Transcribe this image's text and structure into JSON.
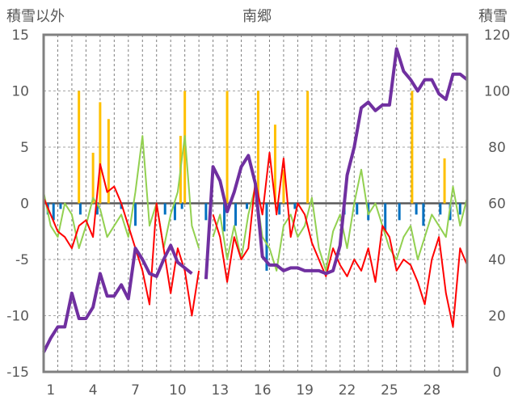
{
  "chart_data": {
    "type": "line",
    "title": "南郷",
    "ylabel_left": "積雪以外",
    "ylabel_right": "積雪",
    "x_ticks": [
      "1",
      "4",
      "7",
      "10",
      "13",
      "16",
      "19",
      "22",
      "25",
      "28"
    ],
    "x_tick_days": [
      1,
      4,
      7,
      10,
      13,
      16,
      19,
      22,
      25,
      28
    ],
    "xlim": [
      0,
      30
    ],
    "ylim_left": [
      -15,
      15
    ],
    "ylim_right": [
      0,
      120
    ],
    "y_ticks_left": [
      "15",
      "10",
      "5",
      "0",
      "-5",
      "-10",
      "-15"
    ],
    "y_ticks_right": [
      "120",
      "100",
      "80",
      "60",
      "40",
      "20",
      "0"
    ],
    "grid": "horizontal dashed every 5 (left axis); vertical dashed at day boundaries",
    "colors": {
      "snow_depth": "#7030a0",
      "temperature": "#ff0000",
      "temperature_2": "#92d050",
      "snowfall": "#ffc000",
      "precip_bar": "#0070c0",
      "zero_line": "#595959",
      "frame": "#808080"
    },
    "series": [
      {
        "key": "snow_depth",
        "axis": "right",
        "x": [
          0,
          0.5,
          1,
          1.5,
          2,
          2.5,
          3,
          3.5,
          4,
          4.5,
          5,
          5.5,
          6,
          6.5,
          7,
          7.5,
          8,
          8.5,
          9,
          9.5,
          10,
          10.5,
          11,
          11.5,
          12,
          12.5,
          13,
          13.5,
          14,
          14.5,
          15,
          15.5,
          16,
          16.5,
          17,
          17.5,
          18,
          18.5,
          19,
          19.5,
          20,
          20.5,
          21,
          21.5,
          22,
          22.5,
          23,
          23.5,
          24,
          24.5,
          25,
          25.5,
          26,
          26.5,
          27,
          27.5,
          28,
          28.5,
          29,
          29.5,
          30
        ],
        "y": [
          7,
          12,
          16,
          16,
          28,
          19,
          19,
          23,
          35,
          27,
          27,
          31,
          26,
          44,
          40,
          35,
          34,
          40,
          45,
          39,
          37,
          35,
          null,
          33,
          73,
          68,
          57,
          64,
          73,
          77,
          67,
          41,
          38,
          38,
          36,
          37,
          37,
          36,
          36,
          36,
          35,
          36,
          45,
          70,
          80,
          94,
          96,
          93,
          95,
          95,
          115,
          107,
          104,
          100,
          104,
          104,
          99,
          97,
          106,
          106,
          104
        ]
      },
      {
        "key": "temperature",
        "axis": "left",
        "x": [
          0,
          0.5,
          1,
          1.5,
          2,
          2.5,
          3,
          3.5,
          4,
          4.5,
          5,
          5.5,
          6,
          6.5,
          7,
          7.5,
          8,
          8.5,
          9,
          9.5,
          10,
          10.5,
          11,
          11.5,
          12,
          12.5,
          13,
          13.5,
          14,
          14.5,
          15,
          15.5,
          16,
          16.5,
          17,
          17.5,
          18,
          18.5,
          19,
          19.5,
          20,
          20.5,
          21,
          21.5,
          22,
          22.5,
          23,
          23.5,
          24,
          24.5,
          25,
          25.5,
          26,
          26.5,
          27,
          27.5,
          28,
          28.5,
          29,
          29.5,
          30
        ],
        "y": [
          0.5,
          -1,
          -2.5,
          -3,
          -4,
          -2,
          -1.5,
          -3,
          3.5,
          1,
          1.5,
          0,
          -2,
          -4,
          -6,
          -9,
          0,
          -4,
          -8,
          -4,
          -6,
          -10,
          -6,
          null,
          -1,
          -3,
          -7,
          -3,
          -5,
          -4,
          2,
          -1,
          4.5,
          -1,
          4,
          -3,
          0,
          -1,
          -3.5,
          -5,
          -6.5,
          -4,
          -5.5,
          -6.5,
          -5,
          -6,
          -4,
          -7,
          -2,
          -3,
          -6,
          -5,
          -5.5,
          -7,
          -9,
          -5,
          -3,
          -8,
          -11,
          -4,
          -5.5
        ]
      },
      {
        "key": "temperature_2",
        "axis": "left",
        "x": [
          0,
          0.5,
          1,
          1.5,
          2,
          2.5,
          3,
          3.5,
          4,
          4.5,
          5,
          5.5,
          6,
          6.5,
          7,
          7.5,
          8,
          8.5,
          9,
          9.5,
          10,
          10.5,
          11,
          11.5,
          12,
          12.5,
          13,
          13.5,
          14,
          14.5,
          15,
          15.5,
          16,
          16.5,
          17,
          17.5,
          18,
          18.5,
          19,
          19.5,
          20,
          20.5,
          21,
          21.5,
          22,
          22.5,
          23,
          23.5,
          24,
          24.5,
          25,
          25.5,
          26,
          26.5,
          27,
          27.5,
          28,
          28.5,
          29,
          29.5,
          30
        ],
        "y": [
          1,
          -2,
          -3,
          0,
          -1,
          -4,
          -2,
          0.5,
          -0.5,
          -3,
          -2,
          -1,
          -3,
          1,
          6,
          -2,
          0,
          -4,
          -1,
          1,
          6,
          -2,
          -4,
          null,
          -3,
          -1,
          -5,
          -2,
          -5,
          -1,
          1.5,
          -3,
          -4,
          -6,
          -2,
          -1,
          -3,
          -2,
          0.5,
          -4,
          -6,
          -2.5,
          -1,
          -4,
          0,
          3,
          -1,
          0,
          -2,
          -4,
          -5,
          -3,
          -2,
          -5,
          -3,
          -1,
          -2,
          -3,
          1.5,
          -2,
          0.5
        ]
      },
      {
        "key": "snowfall",
        "axis": "left",
        "type": "bar",
        "x": [
          2.5,
          3.5,
          4,
          4.6,
          9.7,
          10,
          13,
          15.2,
          16.4,
          17,
          18.7,
          26.1,
          28.4
        ],
        "y": [
          10,
          4.5,
          9,
          7.5,
          6,
          10,
          10,
          10,
          7,
          3,
          10,
          10,
          4
        ]
      },
      {
        "key": "precip_bar",
        "axis": "left",
        "type": "bar",
        "x": [
          0.3,
          0.7,
          1.2,
          2.6,
          3.8,
          5.5,
          6.5,
          8.6,
          9.3,
          9.8,
          11.5,
          12.8,
          13.6,
          14.4,
          15.8,
          16.7,
          17.8,
          21.3,
          22.2,
          23,
          24.2,
          25.2,
          26.4,
          26.9,
          28.1,
          28.8,
          29.5
        ],
        "y": [
          -1,
          -1.5,
          -0.5,
          -1,
          -1,
          -0.5,
          -2,
          -1,
          -1.5,
          -0.5,
          -1.5,
          -2.5,
          -2,
          -0.5,
          -6,
          -1,
          -0.5,
          -1,
          -1,
          -1.5,
          -2.5,
          -1.5,
          -1,
          -2,
          -1,
          -1.5,
          -1
        ]
      }
    ]
  }
}
